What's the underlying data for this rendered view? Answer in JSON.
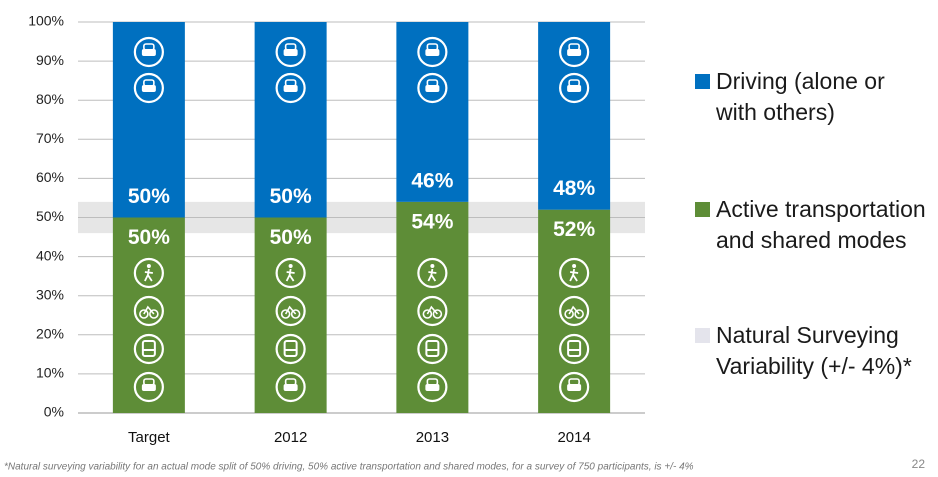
{
  "chart_data": {
    "type": "stacked-bar",
    "categories": [
      "Target",
      "2012",
      "2013",
      "2014"
    ],
    "series": [
      {
        "name": "Active transportation and shared modes",
        "color": "#5e8d37",
        "values": [
          50,
          50,
          54,
          52
        ],
        "value_labels": [
          "50%",
          "50%",
          "54%",
          "52%"
        ]
      },
      {
        "name": "Driving (alone or with others)",
        "color": "#0070c0",
        "values": [
          50,
          50,
          46,
          48
        ],
        "value_labels": [
          "50%",
          "50%",
          "46%",
          "48%"
        ]
      }
    ],
    "band": {
      "name": "Natural Surveying Variability (+/- 4%)*",
      "color": "#e6e6e6",
      "range": [
        46,
        54
      ]
    },
    "ylim": [
      0,
      100
    ],
    "yticks": [
      {
        "value": 0,
        "label": "0%"
      },
      {
        "value": 10,
        "label": "10%"
      },
      {
        "value": 20,
        "label": "20%"
      },
      {
        "value": 30,
        "label": "30%"
      },
      {
        "value": 40,
        "label": "40%"
      },
      {
        "value": 50,
        "label": "50%"
      },
      {
        "value": 60,
        "label": "60%"
      },
      {
        "value": 70,
        "label": "70%"
      },
      {
        "value": 80,
        "label": "80%"
      },
      {
        "value": 90,
        "label": "90%"
      },
      {
        "value": 100,
        "label": "100%"
      }
    ],
    "grid": true,
    "legend_position": "right",
    "footnote": "*Natural surveying variability for an actual mode split of 50% driving, 50% active transportation and shared modes, for a survey of 750 participants, is +/- 4%",
    "page_number": "22"
  }
}
